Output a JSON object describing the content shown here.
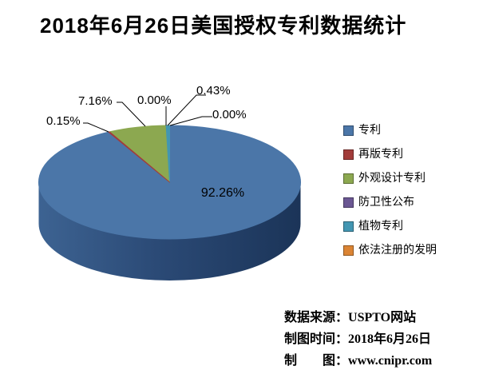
{
  "title": "2018年6月26日美国授权专利数据统计",
  "chart_data": {
    "type": "pie",
    "style": "3d",
    "title": "2018年6月26日美国授权专利数据统计",
    "labels": [
      "专利",
      "再版专利",
      "外观设计专利",
      "防卫性公布",
      "植物专利",
      "依法注册的发明"
    ],
    "values": [
      92.26,
      0.15,
      7.16,
      0.0,
      0.43,
      0.0
    ],
    "value_labels": [
      "92.26%",
      "0.15%",
      "7.16%",
      "0.00%",
      "0.43%",
      "0.00%"
    ],
    "unit": "percent",
    "colors": [
      "#4B76A8",
      "#A23C3A",
      "#8CA850",
      "#6B5793",
      "#4396B2",
      "#DB8434"
    ],
    "legend_position": "right",
    "start_angle_deg": 0,
    "direction": "clockwise",
    "side_gradient": [
      "#3D6392",
      "#2B4A76",
      "#1B3458"
    ],
    "background": "#FFFFFF",
    "text_color": "#000000"
  },
  "legend": {
    "items": [
      "专利",
      "再版专利",
      "外观设计专利",
      "防卫性公布",
      "植物专利",
      "依法注册的发明"
    ]
  },
  "footer": {
    "rows": [
      {
        "label": "数据来源：",
        "value": "USPTO网站"
      },
      {
        "label": "制图时间：",
        "value": "2018年6月26日"
      },
      {
        "label": "制　　图：",
        "value": "www.cnipr.com"
      }
    ]
  }
}
